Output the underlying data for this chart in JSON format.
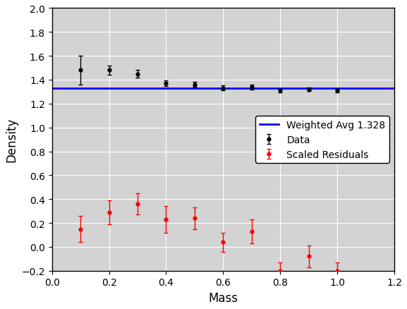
{
  "mass": [
    0.1,
    0.2,
    0.3,
    0.4,
    0.5,
    0.6,
    0.7,
    0.8,
    0.9,
    1.0
  ],
  "density": [
    1.48,
    1.48,
    1.45,
    1.37,
    1.36,
    1.33,
    1.34,
    1.31,
    1.32,
    1.31
  ],
  "density_err": [
    0.12,
    0.04,
    0.03,
    0.025,
    0.02,
    0.02,
    0.02,
    0.015,
    0.015,
    0.015
  ],
  "residuals": [
    0.15,
    0.29,
    0.36,
    0.23,
    0.24,
    0.04,
    0.13,
    -0.2,
    -0.08,
    -0.2
  ],
  "residuals_err": [
    0.11,
    0.1,
    0.09,
    0.11,
    0.09,
    0.08,
    0.1,
    0.07,
    0.09,
    0.07
  ],
  "weighted_avg": 1.328,
  "xlabel": "Mass",
  "ylabel": "Density",
  "legend_data": "Data",
  "legend_avg": "Weighted Avg 1.328",
  "legend_res": "Scaled Residuals",
  "xlim": [
    0.0,
    1.2
  ],
  "ylim": [
    -0.2,
    2.0
  ],
  "bg_color": "#d3d3d3",
  "line_color": "#0000ff",
  "data_color": "#000000",
  "res_color": "#ff0000",
  "xticks": [
    0.0,
    0.2,
    0.4,
    0.6,
    0.8,
    1.0,
    1.2
  ],
  "yticks": [
    -0.2,
    0.0,
    0.2,
    0.4,
    0.6,
    0.8,
    1.0,
    1.2,
    1.4,
    1.6,
    1.8,
    2.0
  ]
}
